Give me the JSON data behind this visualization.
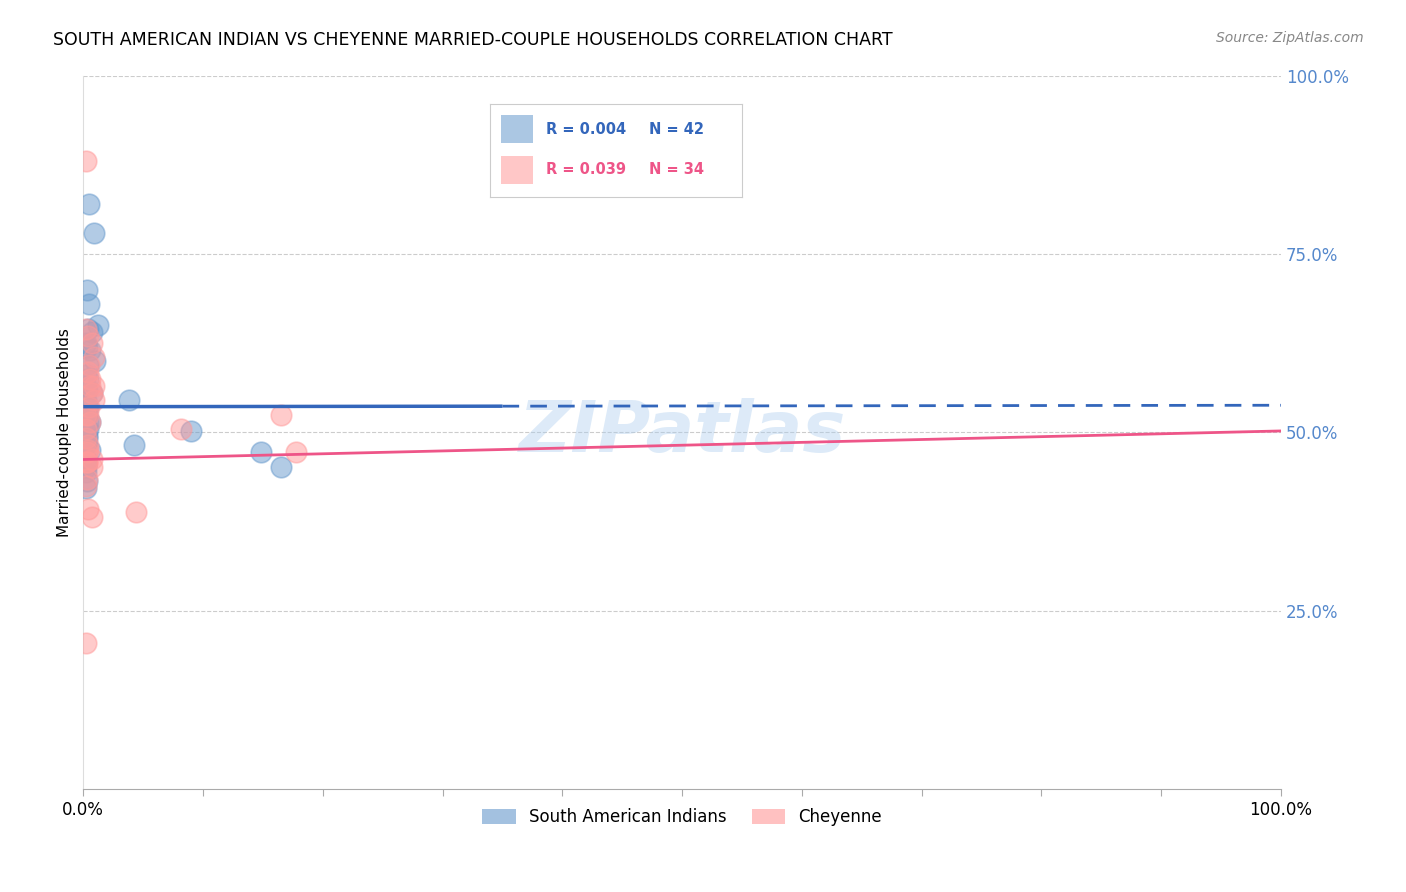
{
  "title": "SOUTH AMERICAN INDIAN VS CHEYENNE MARRIED-COUPLE HOUSEHOLDS CORRELATION CHART",
  "source": "Source: ZipAtlas.com",
  "ylabel": "Married-couple Households",
  "legend_blue_r": "R = 0.004",
  "legend_blue_n": "N = 42",
  "legend_pink_r": "R = 0.039",
  "legend_pink_n": "N = 34",
  "blue_color": "#6699CC",
  "pink_color": "#FF9999",
  "blue_line_color": "#3366BB",
  "pink_line_color": "#EE5588",
  "watermark": "ZIPatlas",
  "blue_x": [
    0.005,
    0.009,
    0.003,
    0.005,
    0.012,
    0.007,
    0.004,
    0.002,
    0.003,
    0.006,
    0.01,
    0.004,
    0.002,
    0.004,
    0.002,
    0.003,
    0.007,
    0.002,
    0.003,
    0.004,
    0.002,
    0.003,
    0.004,
    0.006,
    0.038,
    0.004,
    0.002,
    0.003,
    0.003,
    0.002,
    0.002,
    0.006,
    0.002,
    0.09,
    0.002,
    0.002,
    0.002,
    0.003,
    0.042,
    0.002,
    0.148,
    0.165
  ],
  "blue_y": [
    0.82,
    0.78,
    0.7,
    0.68,
    0.65,
    0.64,
    0.645,
    0.625,
    0.62,
    0.615,
    0.6,
    0.595,
    0.58,
    0.575,
    0.565,
    0.56,
    0.555,
    0.545,
    0.535,
    0.535,
    0.525,
    0.525,
    0.515,
    0.515,
    0.545,
    0.505,
    0.5,
    0.495,
    0.492,
    0.485,
    0.482,
    0.475,
    0.462,
    0.502,
    0.455,
    0.452,
    0.445,
    0.432,
    0.482,
    0.422,
    0.472,
    0.452
  ],
  "pink_x": [
    0.002,
    0.002,
    0.004,
    0.007,
    0.009,
    0.005,
    0.004,
    0.006,
    0.006,
    0.007,
    0.009,
    0.005,
    0.002,
    0.004,
    0.006,
    0.009,
    0.002,
    0.002,
    0.082,
    0.004,
    0.004,
    0.007,
    0.007,
    0.044,
    0.004,
    0.002,
    0.007,
    0.002,
    0.003,
    0.003,
    0.003,
    0.003,
    0.165,
    0.178
  ],
  "pink_y": [
    0.88,
    0.645,
    0.635,
    0.625,
    0.605,
    0.595,
    0.585,
    0.575,
    0.565,
    0.555,
    0.545,
    0.535,
    0.525,
    0.525,
    0.515,
    0.565,
    0.505,
    0.492,
    0.505,
    0.482,
    0.475,
    0.462,
    0.452,
    0.388,
    0.392,
    0.205,
    0.382,
    0.425,
    0.435,
    0.458,
    0.458,
    0.472,
    0.525,
    0.472
  ],
  "xlim": [
    0.0,
    1.0
  ],
  "ylim": [
    0.0,
    1.0
  ],
  "blue_line_start_x": 0.0,
  "blue_line_start_y": 0.536,
  "blue_line_end_x": 1.0,
  "blue_line_end_y": 0.538,
  "blue_line_solid_end": 0.35,
  "pink_line_start_x": 0.0,
  "pink_line_start_y": 0.462,
  "pink_line_end_x": 1.0,
  "pink_line_end_y": 0.502,
  "background_color": "#FFFFFF",
  "grid_color": "#CCCCCC",
  "ytick_color": "#5588CC",
  "title_fontsize": 12.5,
  "source_fontsize": 10
}
